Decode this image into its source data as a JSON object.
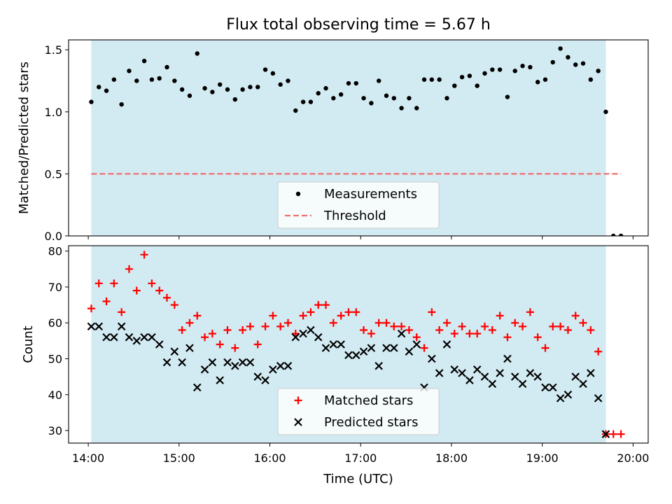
{
  "chart_data": [
    {
      "type": "scatter",
      "title": "Flux total observing time = 5.67 h",
      "xlabel": "",
      "ylabel": "Matched/Predicted stars",
      "ylim": [
        0,
        1.58
      ],
      "yticks": [
        0.0,
        0.5,
        1.0,
        1.5
      ],
      "ytick_labels": [
        "0.0",
        "0.5",
        "1.0",
        "1.5"
      ],
      "xlim": [
        "13:47",
        "20:10"
      ],
      "xticks": [
        "14:00",
        "15:00",
        "16:00",
        "17:00",
        "18:00",
        "19:00",
        "20:00"
      ],
      "shaded_span": [
        "14:02",
        "19:42"
      ],
      "colors": {
        "span": "#add8e6",
        "measurements": "#000000",
        "threshold": "#f07070"
      },
      "legend_position": "lower center",
      "series": [
        {
          "name": "Measurements",
          "marker": "dot",
          "x": [
            "14:02",
            "14:07",
            "14:12",
            "14:17",
            "14:22",
            "14:27",
            "14:32",
            "14:37",
            "14:42",
            "14:47",
            "14:52",
            "14:57",
            "15:02",
            "15:07",
            "15:12",
            "15:17",
            "15:22",
            "15:27",
            "15:32",
            "15:37",
            "15:42",
            "15:47",
            "15:52",
            "15:57",
            "16:02",
            "16:07",
            "16:12",
            "16:17",
            "16:22",
            "16:27",
            "16:32",
            "16:37",
            "16:42",
            "16:47",
            "16:52",
            "16:57",
            "17:02",
            "17:07",
            "17:12",
            "17:17",
            "17:22",
            "17:27",
            "17:32",
            "17:37",
            "17:42",
            "17:47",
            "17:52",
            "17:57",
            "18:02",
            "18:07",
            "18:12",
            "18:17",
            "18:22",
            "18:27",
            "18:32",
            "18:37",
            "18:42",
            "18:47",
            "18:52",
            "18:57",
            "19:02",
            "19:07",
            "19:12",
            "19:17",
            "19:22",
            "19:27",
            "19:32",
            "19:37",
            "19:42",
            "19:47",
            "19:52"
          ],
          "values": [
            1.08,
            1.2,
            1.17,
            1.26,
            1.06,
            1.33,
            1.25,
            1.41,
            1.26,
            1.27,
            1.36,
            1.25,
            1.18,
            1.13,
            1.47,
            1.19,
            1.16,
            1.22,
            1.18,
            1.1,
            1.18,
            1.2,
            1.2,
            1.34,
            1.31,
            1.22,
            1.25,
            1.01,
            1.08,
            1.08,
            1.15,
            1.19,
            1.11,
            1.14,
            1.23,
            1.23,
            1.11,
            1.07,
            1.25,
            1.13,
            1.11,
            1.03,
            1.11,
            1.03,
            1.26,
            1.26,
            1.26,
            1.11,
            1.21,
            1.28,
            1.29,
            1.21,
            1.31,
            1.34,
            1.34,
            1.12,
            1.33,
            1.37,
            1.36,
            1.24,
            1.26,
            1.4,
            1.51,
            1.44,
            1.38,
            1.39,
            1.26,
            1.33,
            1.0,
            0.0,
            0.0
          ]
        },
        {
          "name": "Threshold",
          "marker": "dashed-line",
          "x": [
            "14:02",
            "19:52"
          ],
          "values": [
            0.5,
            0.5
          ]
        }
      ]
    },
    {
      "type": "scatter",
      "title": "",
      "xlabel": "Time (UTC)",
      "ylabel": "Count",
      "ylim": [
        26.5,
        81.5
      ],
      "yticks": [
        30,
        40,
        50,
        60,
        70,
        80
      ],
      "ytick_labels": [
        "30",
        "40",
        "50",
        "60",
        "70",
        "80"
      ],
      "xlim": [
        "13:47",
        "20:10"
      ],
      "xticks": [
        "14:00",
        "15:00",
        "16:00",
        "17:00",
        "18:00",
        "19:00",
        "20:00"
      ],
      "xtick_labels": [
        "14:00",
        "15:00",
        "16:00",
        "17:00",
        "18:00",
        "19:00",
        "20:00"
      ],
      "shaded_span": [
        "14:02",
        "19:42"
      ],
      "colors": {
        "span": "#add8e6",
        "matched": "#ff0000",
        "predicted": "#000000"
      },
      "legend_position": "lower center",
      "series": [
        {
          "name": "Matched stars",
          "marker": "plus",
          "x": [
            "14:02",
            "14:07",
            "14:12",
            "14:17",
            "14:22",
            "14:27",
            "14:32",
            "14:37",
            "14:42",
            "14:47",
            "14:52",
            "14:57",
            "15:02",
            "15:07",
            "15:12",
            "15:17",
            "15:22",
            "15:27",
            "15:32",
            "15:37",
            "15:42",
            "15:47",
            "15:52",
            "15:57",
            "16:02",
            "16:07",
            "16:12",
            "16:17",
            "16:22",
            "16:27",
            "16:32",
            "16:37",
            "16:42",
            "16:47",
            "16:52",
            "16:57",
            "17:02",
            "17:07",
            "17:12",
            "17:17",
            "17:22",
            "17:27",
            "17:32",
            "17:37",
            "17:42",
            "17:47",
            "17:52",
            "17:57",
            "18:02",
            "18:07",
            "18:12",
            "18:17",
            "18:22",
            "18:27",
            "18:32",
            "18:37",
            "18:42",
            "18:47",
            "18:52",
            "18:57",
            "19:02",
            "19:07",
            "19:12",
            "19:17",
            "19:22",
            "19:27",
            "19:32",
            "19:37",
            "19:42",
            "19:47",
            "19:52"
          ],
          "values": [
            64,
            71,
            66,
            71,
            63,
            75,
            69,
            79,
            71,
            69,
            67,
            65,
            58,
            60,
            62,
            56,
            57,
            54,
            58,
            53,
            58,
            59,
            54,
            59,
            62,
            59,
            60,
            57,
            62,
            63,
            65,
            65,
            60,
            62,
            63,
            63,
            58,
            57,
            60,
            60,
            59,
            59,
            58,
            56,
            53,
            63,
            58,
            60,
            57,
            59,
            57,
            57,
            59,
            58,
            62,
            56,
            60,
            59,
            63,
            56,
            53,
            59,
            59,
            58,
            62,
            60,
            58,
            52,
            29,
            29,
            29
          ]
        },
        {
          "name": "Predicted stars",
          "marker": "x",
          "x": [
            "14:02",
            "14:07",
            "14:12",
            "14:17",
            "14:22",
            "14:27",
            "14:32",
            "14:37",
            "14:42",
            "14:47",
            "14:52",
            "14:57",
            "15:02",
            "15:07",
            "15:12",
            "15:17",
            "15:22",
            "15:27",
            "15:32",
            "15:37",
            "15:42",
            "15:47",
            "15:52",
            "15:57",
            "16:02",
            "16:07",
            "16:12",
            "16:17",
            "16:22",
            "16:27",
            "16:32",
            "16:37",
            "16:42",
            "16:47",
            "16:52",
            "16:57",
            "17:02",
            "17:07",
            "17:12",
            "17:17",
            "17:22",
            "17:27",
            "17:32",
            "17:37",
            "17:42",
            "17:47",
            "17:52",
            "17:57",
            "18:02",
            "18:07",
            "18:12",
            "18:17",
            "18:22",
            "18:27",
            "18:32",
            "18:37",
            "18:42",
            "18:47",
            "18:52",
            "18:57",
            "19:02",
            "19:07",
            "19:12",
            "19:17",
            "19:22",
            "19:27",
            "19:32",
            "19:37",
            "19:42"
          ],
          "values": [
            59,
            59,
            56,
            56,
            59,
            56,
            55,
            56,
            56,
            54,
            49,
            52,
            49,
            53,
            42,
            47,
            49,
            44,
            49,
            48,
            49,
            49,
            45,
            44,
            47,
            48,
            48,
            56,
            57,
            58,
            56,
            53,
            54,
            54,
            51,
            51,
            52,
            53,
            48,
            53,
            53,
            57,
            52,
            54,
            42,
            50,
            46,
            54,
            47,
            46,
            44,
            47,
            45,
            43,
            46,
            50,
            45,
            43,
            46,
            45,
            42,
            42,
            39,
            40,
            45,
            43,
            46,
            39,
            29
          ]
        }
      ]
    }
  ]
}
